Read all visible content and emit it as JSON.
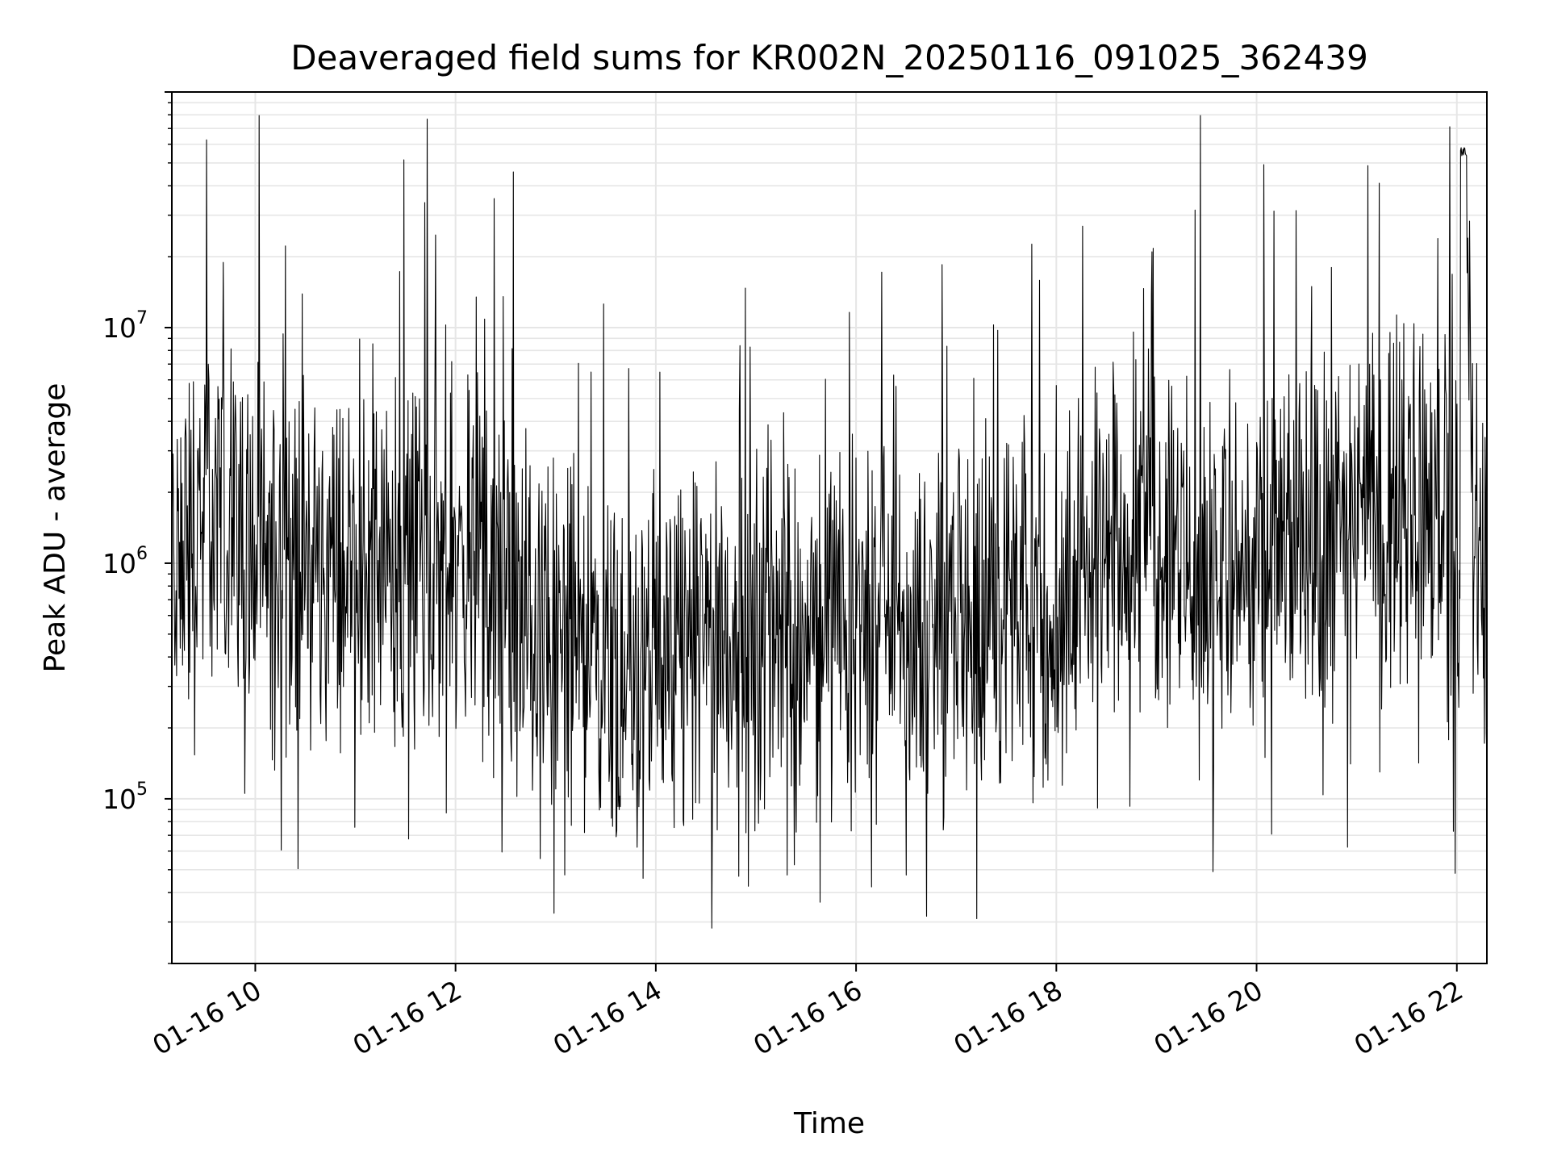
{
  "chart_data": {
    "type": "line",
    "title": "Deaveraged field sums for KR002N_20250116_091025_362439",
    "xlabel": "Time",
    "ylabel": "Peak ADU - average",
    "yscale": "log",
    "xlim": [
      "2025-01-16 09:10",
      "2025-01-16 22:18"
    ],
    "ylim": [
      20000,
      100000000
    ],
    "grid": true,
    "legend": "none",
    "line_color": "#000000",
    "grid_color": "#e6e6e6",
    "x_ticks": [
      {
        "value": "2025-01-16 10:00",
        "label": "01-16 10"
      },
      {
        "value": "2025-01-16 12:00",
        "label": "01-16 12"
      },
      {
        "value": "2025-01-16 14:00",
        "label": "01-16 14"
      },
      {
        "value": "2025-01-16 16:00",
        "label": "01-16 16"
      },
      {
        "value": "2025-01-16 18:00",
        "label": "01-16 18"
      },
      {
        "value": "2025-01-16 20:00",
        "label": "01-16 20"
      },
      {
        "value": "2025-01-16 22:00",
        "label": "01-16 22"
      }
    ],
    "y_ticks": [
      {
        "value": 100000,
        "base": "10",
        "exp": "5"
      },
      {
        "value": 1000000,
        "base": "10",
        "exp": "6"
      },
      {
        "value": 10000000,
        "base": "10",
        "exp": "7"
      }
    ],
    "series": [
      {
        "x": [
          "2025-01-16 09:10",
          "2025-01-16 09:30",
          "2025-01-16 09:45",
          "2025-01-16 10:00",
          "2025-01-16 10:30",
          "2025-01-16 11:00",
          "2025-01-16 11:30",
          "2025-01-16 12:00",
          "2025-01-16 12:30",
          "2025-01-16 13:00",
          "2025-01-16 13:30",
          "2025-01-16 14:00",
          "2025-01-16 14:30",
          "2025-01-16 15:00",
          "2025-01-16 15:30",
          "2025-01-16 16:00",
          "2025-01-16 16:30",
          "2025-01-16 17:00",
          "2025-01-16 17:30",
          "2025-01-16 18:00",
          "2025-01-16 18:30",
          "2025-01-16 19:00",
          "2025-01-16 19:30",
          "2025-01-16 20:00",
          "2025-01-16 20:30",
          "2025-01-16 21:00",
          "2025-01-16 21:30",
          "2025-01-16 21:55",
          "2025-01-16 22:02",
          "2025-01-16 22:06",
          "2025-01-16 22:10",
          "2025-01-16 22:18"
        ],
        "y": [
          1000000,
          1500000,
          1800000,
          1100000,
          900000,
          1000000,
          1000000,
          1100000,
          600000,
          500000,
          450000,
          350000,
          450000,
          500000,
          500000,
          550000,
          550000,
          600000,
          550000,
          650000,
          1500000,
          1300000,
          1000000,
          1000000,
          1100000,
          1600000,
          1800000,
          1700000,
          700000,
          60000000,
          700000,
          800000
        ]
      }
    ]
  }
}
